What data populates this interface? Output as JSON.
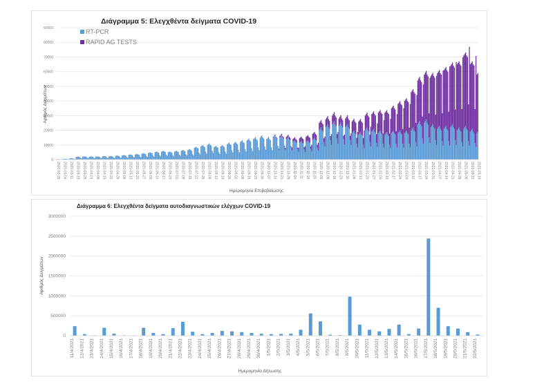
{
  "chart_data": [
    {
      "type": "bar",
      "stacked": true,
      "title": "Διάγραμμα 5: Ελεγχθέντα δείγματα COVID-19",
      "xlabel": "Ημερομηνία Επιβεβαίωσης",
      "ylabel": "Αριθμός Δειγμάτων",
      "ylim": [
        0,
        90000
      ],
      "yticks": [
        0,
        10000,
        20000,
        30000,
        40000,
        50000,
        60000,
        70000,
        80000,
        90000
      ],
      "grid": true,
      "legend": "top-left",
      "series_colors": {
        "RT-PCR": "#5b9bd5",
        "RAPID AG TESTS": "#7030a0"
      },
      "x_start": "2020-02-26",
      "x_end": "2021-05-20",
      "x_tick_step_days": 7,
      "weekly_profile": {
        "note": "approximate weekly-average daily values read from gridlines",
        "weeks": [
          "2020-02-26",
          "2020-03-04",
          "2020-03-11",
          "2020-03-18",
          "2020-03-25",
          "2020-04-01",
          "2020-04-08",
          "2020-04-15",
          "2020-04-22",
          "2020-04-29",
          "2020-05-06",
          "2020-05-13",
          "2020-05-20",
          "2020-05-27",
          "2020-06-03",
          "2020-06-10",
          "2020-06-17",
          "2020-06-24",
          "2020-07-01",
          "2020-07-08",
          "2020-07-15",
          "2020-07-22",
          "2020-07-29",
          "2020-08-05",
          "2020-08-12",
          "2020-08-19",
          "2020-08-26",
          "2020-09-02",
          "2020-09-09",
          "2020-09-16",
          "2020-09-23",
          "2020-09-30",
          "2020-10-07",
          "2020-10-14",
          "2020-10-21",
          "2020-10-28",
          "2020-11-04",
          "2020-11-11",
          "2020-11-18",
          "2020-11-25",
          "2020-12-02",
          "2020-12-09",
          "2020-12-16",
          "2020-12-23",
          "2020-12-30",
          "2021-01-06",
          "2021-01-13",
          "2021-01-20",
          "2021-01-27",
          "2021-02-03",
          "2021-02-10",
          "2021-02-17",
          "2021-02-24",
          "2021-03-03",
          "2021-03-10",
          "2021-03-17",
          "2021-03-24",
          "2021-03-31",
          "2021-04-07",
          "2021-04-14",
          "2021-04-21",
          "2021-04-28",
          "2021-05-05",
          "2021-05-12",
          "2021-05-19"
        ],
        "series": [
          {
            "name": "RT-PCR",
            "values": [
              300,
              500,
              800,
              1800,
              2000,
              2000,
              2000,
              2200,
              2200,
              2500,
              2800,
              3200,
              3500,
              4000,
              4500,
              5000,
              5500,
              5000,
              5500,
              6000,
              6500,
              8000,
              9000,
              10000,
              8500,
              9000,
              10500,
              11000,
              12000,
              13000,
              14000,
              15000,
              14000,
              15000,
              15000,
              14000,
              12000,
              11500,
              12000,
              13500,
              20000,
              22000,
              24000,
              23000,
              22000,
              18000,
              17000,
              20000,
              19000,
              18000,
              17000,
              18000,
              18000,
              18000,
              20000,
              24000,
              25000,
              22000,
              21000,
              21000,
              22000,
              20000,
              21000,
              19000,
              18000
            ]
          },
          {
            "name": "RAPID AG TESTS",
            "values": [
              0,
              0,
              0,
              0,
              0,
              0,
              0,
              0,
              0,
              0,
              0,
              0,
              0,
              0,
              0,
              0,
              0,
              0,
              0,
              0,
              0,
              0,
              0,
              0,
              0,
              0,
              0,
              0,
              0,
              0,
              0,
              0,
              0,
              500,
              1000,
              1500,
              2000,
              3000,
              3500,
              4000,
              5000,
              5500,
              6000,
              5000,
              6000,
              8000,
              9000,
              10000,
              12000,
              14000,
              15000,
              17000,
              20000,
              22000,
              26000,
              30000,
              33000,
              35000,
              38000,
              40000,
              42000,
              45000,
              50000,
              46000,
              40000
            ]
          }
        ]
      }
    },
    {
      "type": "bar",
      "title": "Διάγραμμα 6: Ελεγχθέντα δείγματα αυτοδιαγνωστικών ελέγχων COVID-19",
      "xlabel": "Ημερομηνία Δήλωσης",
      "ylabel": "Αριθμός Δειγμάτων",
      "ylim": [
        0,
        3000000
      ],
      "yticks": [
        0,
        500000,
        1000000,
        1500000,
        2000000,
        2500000,
        3000000
      ],
      "grid": true,
      "color": "#5b9bd5",
      "categories": [
        "11/4/2021",
        "12/4/2021",
        "13/4/2021",
        "14/4/2021",
        "15/4/2021",
        "16/4/2021",
        "17/4/2021",
        "18/4/2021",
        "19/4/2021",
        "20/4/2021",
        "21/4/2021",
        "22/4/2021",
        "23/4/2021",
        "24/4/2021",
        "25/4/2021",
        "26/4/2021",
        "27/4/2021",
        "28/4/2021",
        "29/4/2021",
        "30/4/2021",
        "1/5/2021",
        "2/5/2021",
        "3/5/2021",
        "4/5/2021",
        "5/5/2021",
        "6/5/2021",
        "7/5/2021",
        "8/5/2021",
        "9/5/2021",
        "10/5/2021",
        "11/5/2021",
        "12/5/2021",
        "13/5/2021",
        "14/5/2021",
        "15/5/2021",
        "16/5/2021",
        "17/5/2021",
        "18/5/2021",
        "19/5/2021",
        "20/5/2021",
        "21/5/2021",
        "22/5/2021"
      ],
      "values": [
        240000,
        40000,
        10000,
        200000,
        50000,
        10000,
        10000,
        200000,
        70000,
        40000,
        190000,
        350000,
        100000,
        40000,
        70000,
        120000,
        110000,
        90000,
        70000,
        50000,
        40000,
        45000,
        50000,
        150000,
        560000,
        360000,
        25000,
        15000,
        980000,
        280000,
        150000,
        110000,
        170000,
        280000,
        40000,
        180000,
        2440000,
        700000,
        240000,
        180000,
        90000,
        30000
      ]
    }
  ]
}
